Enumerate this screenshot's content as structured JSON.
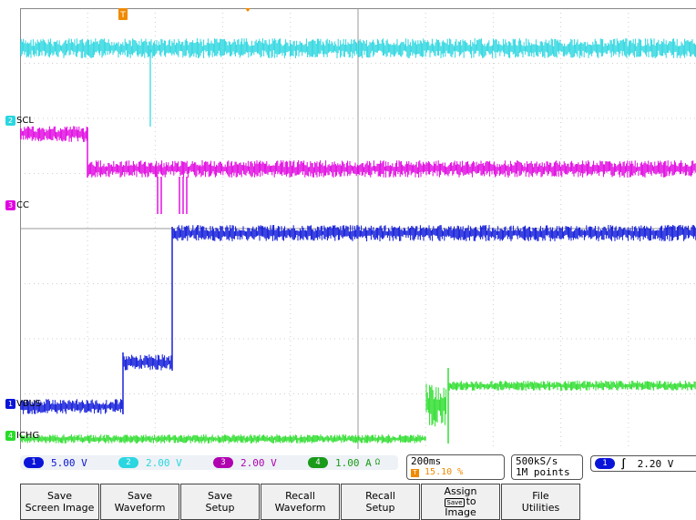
{
  "top_label": "",
  "trigger_marker": "T",
  "channels": [
    {
      "id": "2",
      "label": "SCL",
      "color": "#2ad6e0"
    },
    {
      "id": "3",
      "label": "CC",
      "color": "#e000e0"
    },
    {
      "id": "1",
      "label": "VBUS",
      "color": "#0a14d8"
    },
    {
      "id": "4",
      "label": "ICHG",
      "color": "#28dc28"
    }
  ],
  "readout": {
    "ch1": {
      "chip": "1",
      "value": "5.00 V",
      "color": "#0a14d8"
    },
    "ch2": {
      "chip": "2",
      "value": "2.00 V",
      "color": "#2ad6e0"
    },
    "ch3": {
      "chip": "3",
      "value": "2.00 V",
      "color": "#b000b0"
    },
    "ch4": {
      "chip": "4",
      "value": "1.00 A",
      "suffix": "Ω",
      "color": "#1a9a1a"
    },
    "timebase": "200ms",
    "trigger_pos": "15.10 %",
    "sample_rate": "500kS/s",
    "record_length": "1M points",
    "trigger_chip": "1",
    "trigger_slope": "∫",
    "trigger_level": "2.20 V"
  },
  "softkeys": [
    {
      "line1": "Save",
      "line2": "Screen Image"
    },
    {
      "line1": "Save",
      "line2": "Waveform"
    },
    {
      "line1": "Save",
      "line2": "Setup"
    },
    {
      "line1": "Recall",
      "line2": "Waveform"
    },
    {
      "line1": "Recall",
      "line2": "Setup"
    },
    {
      "line1": "Assign",
      "line2_prefix": "Save",
      "line2": "to",
      "line3": "Image"
    },
    {
      "line1": "File",
      "line2": "Utilities"
    }
  ],
  "colors": {
    "ch1": "#0a14d8",
    "ch2": "#2ad6e0",
    "ch3": "#e000e0",
    "ch4": "#28dc28",
    "trigger": "#f08a00"
  }
}
